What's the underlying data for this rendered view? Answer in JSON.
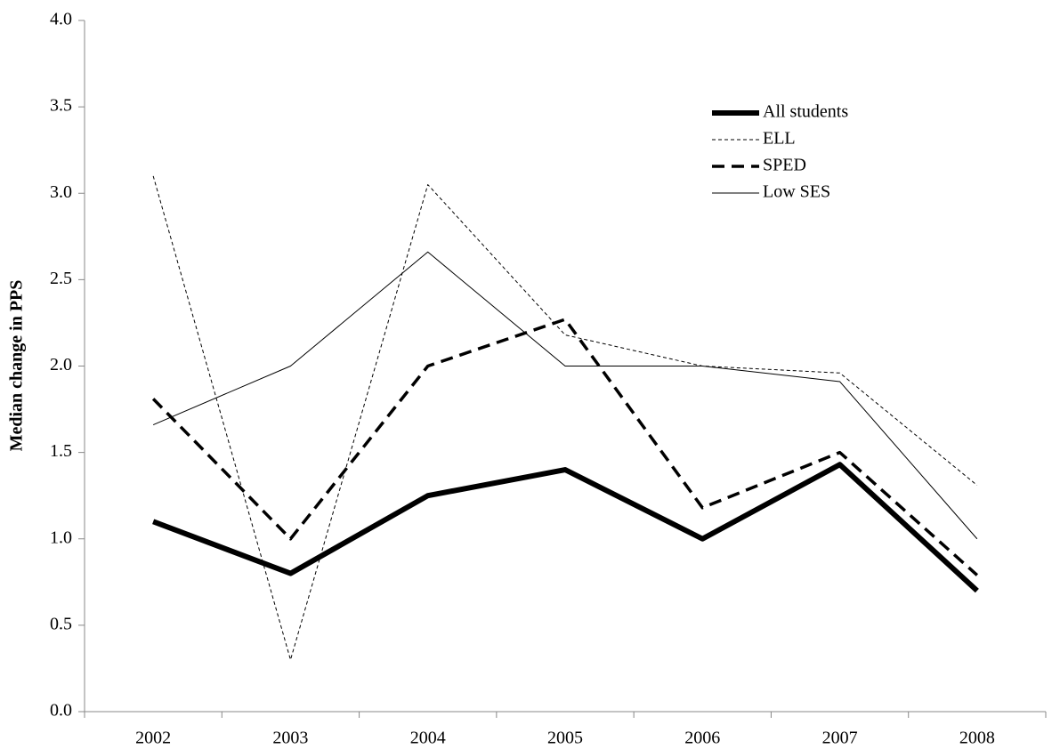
{
  "chart_data": {
    "type": "line",
    "y_label": "Median change in PPS",
    "categories": [
      "2002",
      "2003",
      "2004",
      "2005",
      "2006",
      "2007",
      "2008"
    ],
    "series": [
      {
        "name": "All students",
        "color": "#000000",
        "style": "thick",
        "values": [
          1.1,
          0.8,
          1.25,
          1.4,
          1.0,
          1.43,
          0.7
        ]
      },
      {
        "name": "ELL",
        "color": "#000000",
        "style": "dotted",
        "values": [
          3.1,
          0.3,
          3.05,
          2.18,
          2.0,
          1.96,
          1.31
        ]
      },
      {
        "name": "SPED",
        "color": "#000000",
        "style": "dashed",
        "values": [
          1.81,
          1.0,
          2.0,
          2.27,
          1.18,
          1.5,
          0.79
        ]
      },
      {
        "name": "Low SES",
        "color": "#000000",
        "style": "solid",
        "values": [
          1.66,
          2.0,
          2.66,
          2.0,
          2.0,
          1.91,
          1.0
        ]
      }
    ],
    "ylim": [
      0,
      4
    ],
    "yticks": [
      {
        "value": 0,
        "label": "0.0"
      },
      0.5,
      {
        "value": 1,
        "label": "1.0"
      },
      1.5,
      {
        "value": 2,
        "label": "2.0"
      },
      2.5,
      {
        "value": 3,
        "label": "3.0"
      },
      3.5,
      {
        "value": 4,
        "label": "4.0"
      }
    ],
    "grid": false,
    "legend": "upper right"
  }
}
